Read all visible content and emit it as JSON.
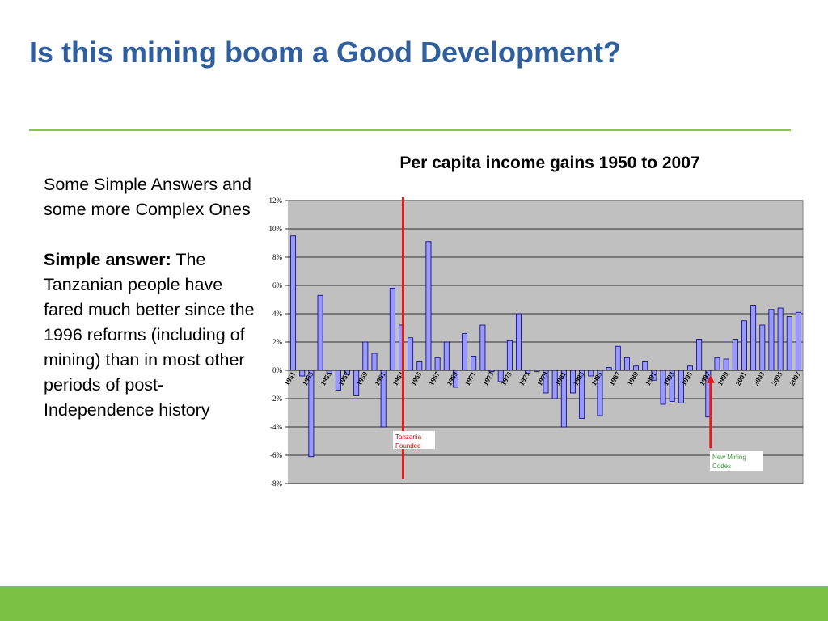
{
  "slide": {
    "title": "Is this mining boom a Good Development?",
    "intro_text": "Some Simple Answers and some more Complex Ones",
    "answer_label": "Simple answer:",
    "answer_text": "The Tanzanian people have fared much better since the 1996 reforms (including of mining) than in most other periods of post-Independence history"
  },
  "colors": {
    "title": "#2f5f9e",
    "accent_green": "#8cc34a",
    "footer_green": "#7bc143",
    "plot_bg": "#c0c0c0",
    "bar_fill": "#9999ff",
    "bar_stroke": "#000080",
    "marker_red": "#e21a1a",
    "tanzania_label": "#cc0000",
    "mining_label": "#3a9a3a"
  },
  "chart_data": {
    "type": "bar",
    "title": "Per capita income gains 1950 to 2007",
    "xlabel": "",
    "ylabel": "",
    "ylim": [
      -8,
      12
    ],
    "y_ticks": [
      "-8%",
      "-6%",
      "-4%",
      "-2%",
      "0%",
      "2%",
      "4%",
      "6%",
      "8%",
      "10%",
      "12%"
    ],
    "y_tick_values": [
      -8,
      -6,
      -4,
      -2,
      0,
      2,
      4,
      6,
      8,
      10,
      12
    ],
    "grid": true,
    "legend": "none",
    "categories": [
      1951,
      1952,
      1953,
      1954,
      1955,
      1956,
      1957,
      1958,
      1959,
      1960,
      1961,
      1962,
      1963,
      1964,
      1965,
      1966,
      1967,
      1968,
      1969,
      1970,
      1971,
      1972,
      1973,
      1974,
      1975,
      1976,
      1977,
      1978,
      1979,
      1980,
      1981,
      1982,
      1983,
      1984,
      1985,
      1986,
      1987,
      1988,
      1989,
      1990,
      1991,
      1992,
      1993,
      1994,
      1995,
      1996,
      1997,
      1998,
      1999,
      2000,
      2001,
      2002,
      2003,
      2004,
      2005,
      2006,
      2007
    ],
    "tick_labels": [
      "1951",
      "1953",
      "1955",
      "1957",
      "1959",
      "1961",
      "1963",
      "1965",
      "1967",
      "1969",
      "1971",
      "1973",
      "1975",
      "1977",
      "1979",
      "1981",
      "1983",
      "1985",
      "1987",
      "1989",
      "1991",
      "1993",
      "1995",
      "1997",
      "1999",
      "2001",
      "2003",
      "2005",
      "2007"
    ],
    "values": [
      9.5,
      -0.4,
      -6.1,
      5.3,
      -0.2,
      -1.4,
      -0.3,
      -1.8,
      2.0,
      1.2,
      -4.0,
      5.8,
      3.2,
      2.3,
      0.6,
      9.1,
      0.9,
      2.0,
      -1.2,
      2.6,
      1.0,
      3.2,
      -0.1,
      -0.8,
      2.1,
      4.0,
      -0.2,
      -0.1,
      -1.6,
      -2.0,
      -4.0,
      -1.6,
      -3.4,
      -0.4,
      -3.2,
      0.2,
      1.7,
      0.9,
      0.3,
      0.6,
      -0.7,
      -2.4,
      -2.2,
      -2.3,
      0.3,
      2.2,
      -3.3,
      0.9,
      0.8,
      2.2,
      3.5,
      4.6,
      3.2,
      4.3,
      4.4,
      3.8,
      4.1
    ],
    "annotations": [
      {
        "x": 1963,
        "text": "Tanzania Founded",
        "line_from": 12,
        "line_to": -7.7
      },
      {
        "x": 1997,
        "text": "New Mining Codes",
        "arrow_from": -5.5,
        "arrow_to": -0.1
      }
    ]
  }
}
